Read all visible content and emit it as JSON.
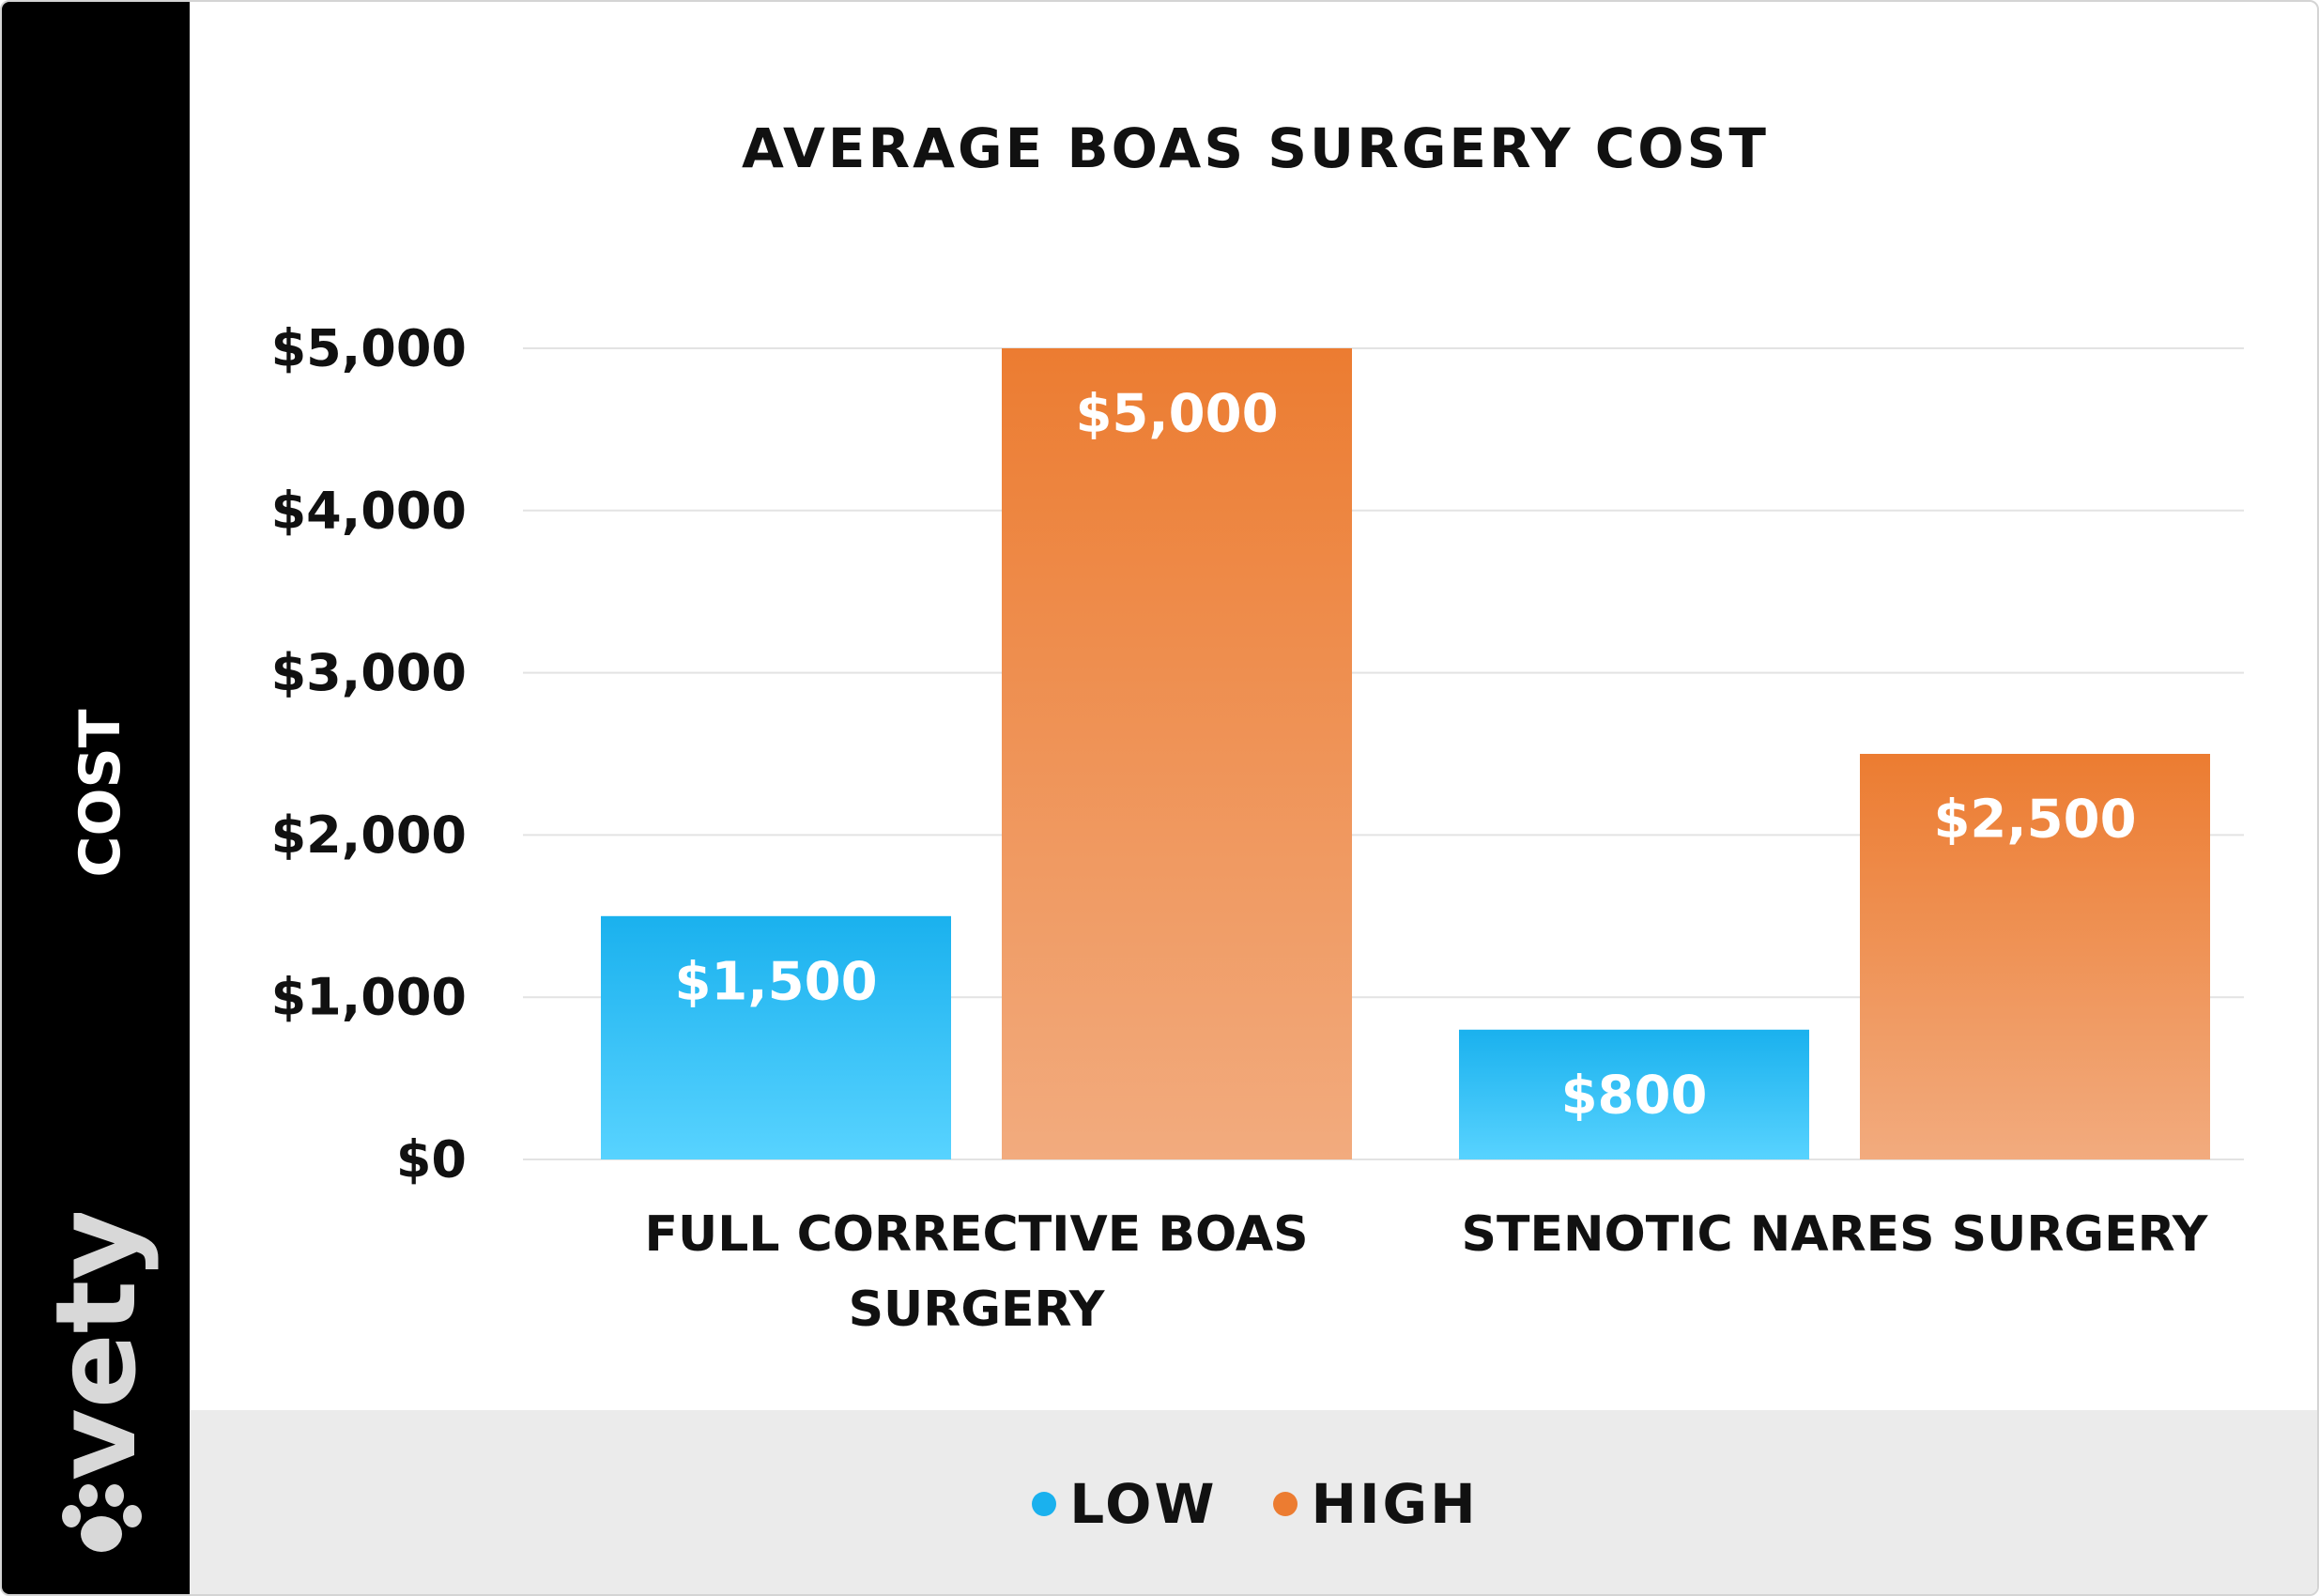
{
  "chart_data": {
    "type": "bar",
    "title": "AVERAGE BOAS SURGERY COST",
    "ylabel": "COST",
    "xlabel": "",
    "categories": [
      "FULL CORRECTIVE BOAS SURGERY",
      "STENOTIC NARES SURGERY"
    ],
    "series": [
      {
        "name": "LOW",
        "values": [
          1500,
          800
        ],
        "color": "#1ab1ee",
        "color_light": "#58d3ff"
      },
      {
        "name": "HIGH",
        "values": [
          5000,
          2500
        ],
        "color": "#ec7c31",
        "color_light": "#f2ab7e"
      }
    ],
    "data_labels": [
      [
        "$1,500",
        "$800"
      ],
      [
        "$5,000",
        "$2,500"
      ]
    ],
    "ylim": [
      0,
      5000
    ],
    "yticks": [
      0,
      1000,
      2000,
      3000,
      4000,
      5000
    ],
    "ytick_labels": [
      "$0",
      "$1,000",
      "$2,000",
      "$3,000",
      "$4,000",
      "$5,000"
    ],
    "category_lines": [
      [
        "FULL CORRECTIVE BOAS",
        "SURGERY"
      ],
      [
        "STENOTIC NARES SURGERY"
      ]
    ],
    "grid": true,
    "legend_position": "bottom"
  },
  "logo": {
    "text": "vety",
    "icon": "paw-icon",
    "color": "#d8d8d8"
  },
  "colors": {
    "sidebar": "#000000",
    "footer": "#ebebeb",
    "text": "#111111",
    "grid": "#e3e3e3"
  }
}
